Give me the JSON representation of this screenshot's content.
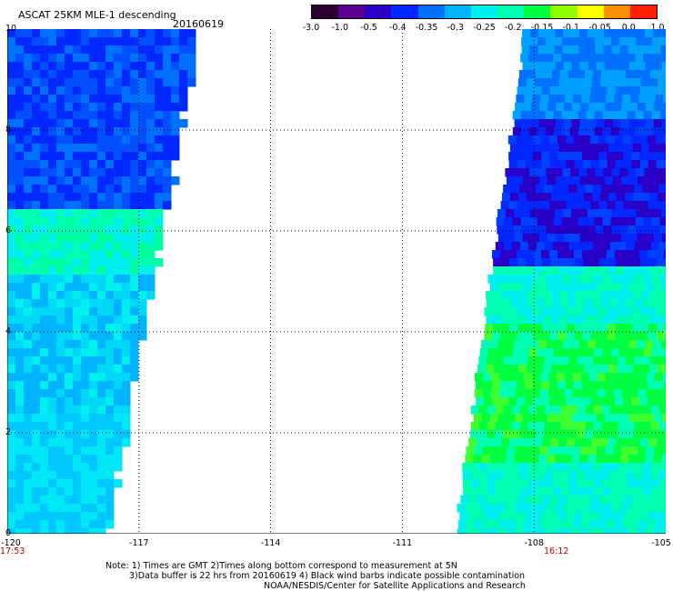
{
  "header": {
    "title": "ASCAT 25KM MLE-1 descending",
    "date": "20160619"
  },
  "colorbar": {
    "ticks": [
      "-3.0",
      "-1.0",
      "-0.5",
      "-0.4",
      "-0.35",
      "-0.3",
      "-0.25",
      "-0.2",
      "-0.15",
      "-0.1",
      "-0.05",
      "0.0",
      "1.0"
    ],
    "colors": [
      "#2a0030",
      "#5a0090",
      "#2a00c8",
      "#0028ff",
      "#0070ff",
      "#00b4ff",
      "#00f0f0",
      "#00ffb0",
      "#00ff40",
      "#90ff00",
      "#ffff00",
      "#ff9000",
      "#ff2000"
    ]
  },
  "axes": {
    "y_ticks": [
      "0",
      "2",
      "4",
      "6",
      "8",
      "10"
    ],
    "x_ticks": [
      "-120",
      "-117",
      "-114",
      "-111",
      "-108",
      "-105"
    ],
    "x_range": [
      -120,
      -105
    ],
    "y_range": [
      0,
      10
    ],
    "grid": "dotted"
  },
  "times": {
    "left": "17:53",
    "right": "16:12"
  },
  "swaths": {
    "left": {
      "lon_west": -120,
      "lon_east_top": -115.7,
      "lon_east_bottom": -117.8,
      "dominant_value": "-0.35"
    },
    "right": {
      "lon_west_top": -108.2,
      "lon_west_bottom": -109.8,
      "lon_east": -105,
      "dominant_value": "-0.2"
    }
  },
  "footer": {
    "line1": "Note: 1) Times are GMT 2)Times along bottom correspond to measurement at 5N",
    "line2": "3)Data buffer is 22 hrs from 20160619 4) Black wind barbs indicate possible contamination",
    "line3": "NOAA/NESDIS/Center for Satellite Applications and Research"
  }
}
